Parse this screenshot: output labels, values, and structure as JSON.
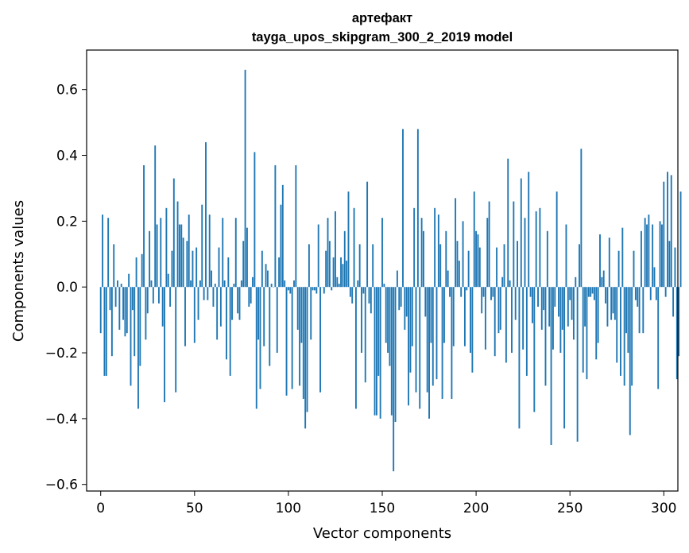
{
  "chart_data": {
    "type": "bar",
    "title": "артефакт",
    "subtitle": "tayga_upos_skipgram_300_2_2019 model",
    "xlabel": "Vector components",
    "ylabel": "Components values",
    "xlim": [
      -7.5,
      307.5
    ],
    "ylim": [
      -0.62,
      0.72
    ],
    "xticks": [
      0,
      50,
      100,
      150,
      200,
      250,
      300
    ],
    "yticks": [
      -0.6,
      -0.4,
      -0.2,
      0.0,
      0.2,
      0.4,
      0.6
    ],
    "xtick_labels": [
      "0",
      "50",
      "100",
      "150",
      "200",
      "250",
      "300"
    ],
    "ytick_labels": [
      "−0.6",
      "−0.4",
      "−0.2",
      "0.0",
      "0.2",
      "0.4",
      "0.6"
    ],
    "bar_color": "#1f77b4",
    "grid": false,
    "x_start": 0,
    "values": [
      -0.14,
      0.22,
      -0.27,
      -0.27,
      0.21,
      -0.07,
      -0.21,
      0.13,
      -0.06,
      0.02,
      -0.13,
      0.01,
      -0.1,
      -0.15,
      -0.14,
      0.04,
      -0.3,
      -0.07,
      -0.21,
      0.09,
      -0.37,
      -0.24,
      0.1,
      0.37,
      -0.16,
      -0.08,
      0.17,
      0.02,
      -0.05,
      0.43,
      0.19,
      -0.05,
      0.21,
      -0.12,
      -0.35,
      0.24,
      0.04,
      -0.06,
      0.11,
      0.33,
      -0.32,
      0.26,
      0.19,
      0.19,
      0.15,
      -0.18,
      0.14,
      0.22,
      0.02,
      0.11,
      -0.17,
      0.12,
      -0.1,
      0.02,
      0.25,
      -0.04,
      0.44,
      -0.04,
      0.22,
      0.05,
      -0.06,
      0.01,
      -0.16,
      0.12,
      -0.12,
      0.21,
      0.02,
      -0.22,
      0.09,
      -0.27,
      -0.1,
      0.01,
      0.21,
      -0.08,
      -0.1,
      0.02,
      0.14,
      0.66,
      0.18,
      -0.06,
      -0.05,
      0.03,
      0.41,
      -0.37,
      -0.16,
      -0.31,
      0.11,
      -0.18,
      0.07,
      0.05,
      -0.24,
      0.01,
      0.0,
      0.37,
      -0.2,
      0.09,
      0.25,
      0.31,
      0.02,
      -0.33,
      -0.01,
      -0.02,
      -0.31,
      0.02,
      0.37,
      -0.13,
      -0.3,
      -0.17,
      -0.34,
      -0.43,
      -0.38,
      0.13,
      -0.16,
      -0.01,
      -0.01,
      -0.02,
      0.19,
      -0.32,
      0.0,
      -0.02,
      0.11,
      0.21,
      0.14,
      -0.01,
      0.09,
      0.23,
      0.03,
      0.01,
      0.09,
      0.07,
      0.17,
      0.08,
      0.29,
      -0.03,
      -0.05,
      0.24,
      -0.37,
      0.02,
      0.13,
      -0.2,
      -0.02,
      -0.29,
      0.32,
      -0.05,
      -0.08,
      0.13,
      -0.39,
      -0.39,
      -0.27,
      -0.4,
      0.21,
      0.01,
      -0.17,
      -0.2,
      -0.24,
      -0.39,
      -0.56,
      -0.41,
      0.05,
      -0.07,
      -0.06,
      0.48,
      -0.13,
      -0.09,
      -0.36,
      -0.26,
      -0.18,
      0.24,
      -0.32,
      0.48,
      -0.37,
      0.21,
      0.17,
      -0.09,
      -0.32,
      -0.4,
      -0.17,
      -0.3,
      0.24,
      -0.28,
      0.22,
      0.13,
      -0.34,
      -0.17,
      0.17,
      0.05,
      -0.03,
      -0.34,
      -0.18,
      0.27,
      0.14,
      0.08,
      -0.03,
      0.2,
      -0.18,
      -0.01,
      0.11,
      -0.2,
      -0.26,
      0.29,
      0.17,
      0.16,
      0.12,
      -0.08,
      -0.03,
      -0.19,
      0.21,
      0.26,
      -0.04,
      -0.03,
      -0.21,
      0.12,
      -0.14,
      -0.13,
      0.03,
      0.13,
      -0.23,
      0.39,
      0.02,
      -0.2,
      0.26,
      -0.1,
      0.14,
      -0.43,
      0.33,
      -0.19,
      0.21,
      -0.27,
      0.35,
      -0.03,
      -0.11,
      -0.38,
      0.23,
      -0.06,
      0.24,
      -0.13,
      -0.07,
      -0.3,
      0.17,
      -0.12,
      -0.48,
      -0.19,
      -0.06,
      0.29,
      -0.09,
      -0.2,
      -0.13,
      -0.43,
      0.19,
      -0.12,
      -0.04,
      -0.1,
      -0.16,
      0.03,
      -0.47,
      0.13,
      0.42,
      -0.26,
      -0.12,
      -0.28,
      -0.03,
      -0.03,
      -0.02,
      -0.04,
      -0.22,
      -0.17,
      0.16,
      0.03,
      0.05,
      -0.05,
      -0.12,
      0.15,
      -0.1,
      -0.08,
      -0.1,
      -0.23,
      0.11,
      -0.27,
      0.18,
      -0.3,
      -0.14,
      -0.2,
      -0.45,
      -0.3,
      0.11,
      -0.04,
      -0.06,
      -0.14,
      0.17,
      -0.14,
      0.21,
      0.19,
      0.22,
      -0.04,
      0.19,
      0.06,
      -0.04,
      -0.31,
      0.2,
      0.19,
      0.32,
      -0.03,
      0.35,
      0.14,
      0.34,
      -0.09,
      0.12,
      -0.28,
      -0.21,
      0.29
    ]
  }
}
